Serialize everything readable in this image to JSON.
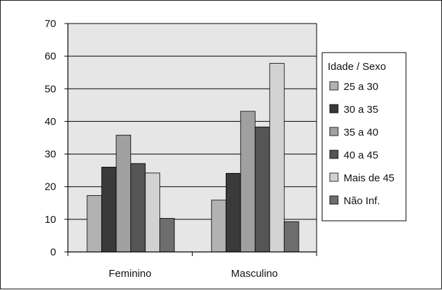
{
  "chart_data": {
    "type": "bar",
    "title": "",
    "xlabel": "",
    "ylabel": "",
    "categories": [
      "Feminino",
      "Masculino"
    ],
    "ylim": [
      0,
      70
    ],
    "yticks": [
      0,
      10,
      20,
      30,
      40,
      50,
      60,
      70
    ],
    "grid": true,
    "legend": {
      "title": "Idade / Sexo",
      "placement": "right"
    },
    "series": [
      {
        "name": "25 a 30",
        "color": "#b2b2b2",
        "values": [
          17.3,
          15.9
        ]
      },
      {
        "name": "30 a 35",
        "color": "#3a3a3a",
        "values": [
          26.0,
          24.1
        ]
      },
      {
        "name": "35 a 40",
        "color": "#a0a0a0",
        "values": [
          35.8,
          43.1
        ]
      },
      {
        "name": "40 a 45",
        "color": "#555555",
        "values": [
          27.1,
          38.3
        ]
      },
      {
        "name": "Mais de 45",
        "color": "#d2d2d2",
        "values": [
          24.2,
          57.8
        ]
      },
      {
        "name": "Não Inf.",
        "color": "#6e6e6e",
        "values": [
          10.3,
          9.3
        ]
      }
    ],
    "colors": {
      "plot_background": "#e6e6e6",
      "gridline": "#000000",
      "bar_outline": "#000000"
    }
  }
}
